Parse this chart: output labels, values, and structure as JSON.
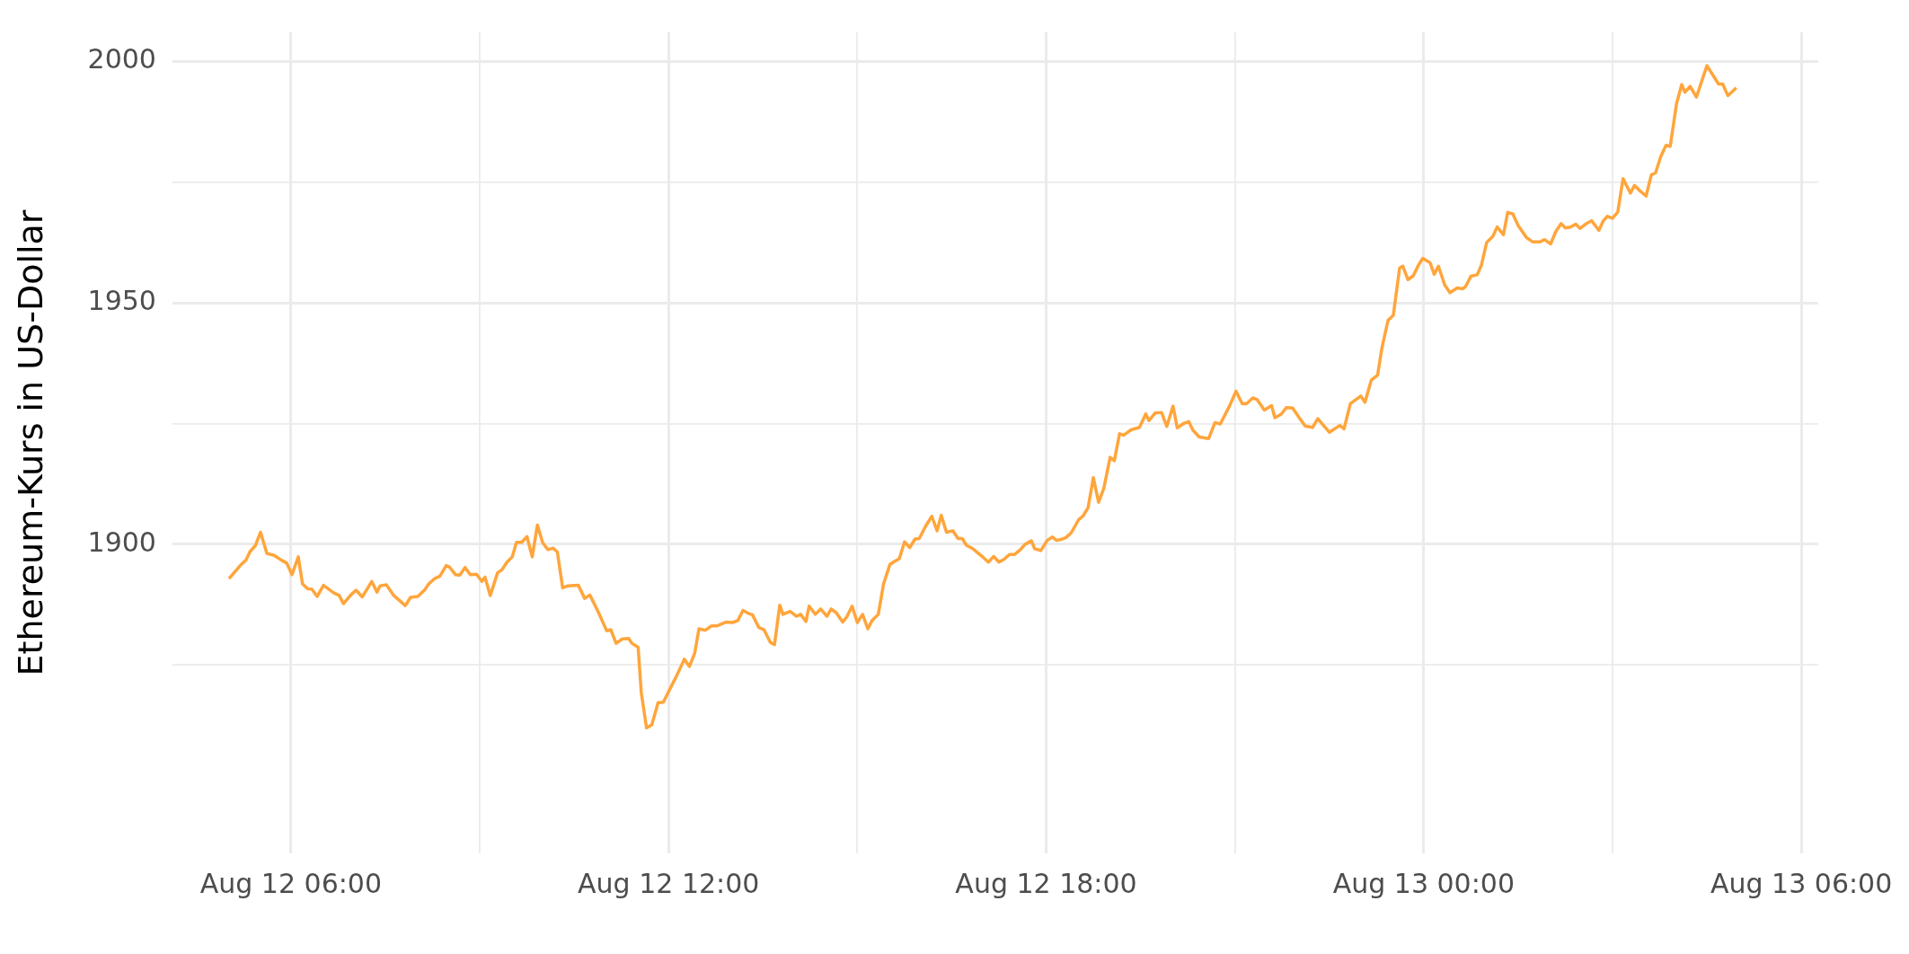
{
  "chart_data": {
    "type": "line",
    "ylabel": "Ethereum-Kurs in US-Dollar",
    "marker": "none",
    "grid": true,
    "xlim": [
      "--08-12T04:07",
      "--08-13T06:16"
    ],
    "ylim": [
      1836,
      2006
    ],
    "xticks": [
      {
        "value": "--08-12T06:00",
        "label": "Aug 12 06:00"
      },
      {
        "value": "--08-12T09:00",
        "label": null
      },
      {
        "value": "--08-12T12:00",
        "label": "Aug 12 12:00"
      },
      {
        "value": "--08-12T15:00",
        "label": null
      },
      {
        "value": "--08-12T18:00",
        "label": "Aug 12 18:00"
      },
      {
        "value": "--08-12T21:00",
        "label": null
      },
      {
        "value": "--08-13T00:00",
        "label": "Aug 13 00:00"
      },
      {
        "value": "--08-13T03:00",
        "label": null
      },
      {
        "value": "--08-13T06:00",
        "label": "Aug 13 06:00"
      }
    ],
    "yticks": [
      {
        "value": 1875,
        "label": null
      },
      1900,
      {
        "value": 1925,
        "label": null
      },
      1950,
      {
        "value": 1975,
        "label": null
      },
      2000
    ],
    "series": [
      {
        "color": "#ffa53b",
        "x": [
          "--08-12T05:01",
          "--08-12T05:05",
          "--08-12T05:12",
          "--08-12T05:17",
          "--08-12T05:21",
          "--08-12T05:26",
          "--08-12T05:31",
          "--08-12T05:37",
          "--08-12T05:44",
          "--08-12T05:51",
          "--08-12T05:56",
          "--08-12T06:01",
          "--08-12T06:07",
          "--08-12T06:11",
          "--08-12T06:16",
          "--08-12T06:20",
          "--08-12T06:25",
          "--08-12T06:31",
          "--08-12T06:41",
          "--08-12T06:46",
          "--08-12T06:50",
          "--08-12T06:57",
          "--08-12T07:02",
          "--08-12T07:08",
          "--08-12T07:17",
          "--08-12T07:22",
          "--08-12T07:25",
          "--08-12T07:31",
          "--08-12T07:38",
          "--08-12T07:49",
          "--08-12T07:54",
          "--08-12T08:01",
          "--08-12T08:08",
          "--08-12T08:11",
          "--08-12T08:17",
          "--08-12T08:22",
          "--08-12T08:28",
          "--08-12T08:31",
          "--08-12T08:37",
          "--08-12T08:41",
          "--08-12T08:46",
          "--08-12T08:51",
          "--08-12T08:57",
          "--08-12T09:02",
          "--08-12T09:05",
          "--08-12T09:10",
          "--08-12T09:17",
          "--08-12T09:21",
          "--08-12T09:26",
          "--08-12T09:31",
          "--08-12T09:35",
          "--08-12T09:40",
          "--08-12T09:45",
          "--08-12T09:50",
          "--08-12T09:55",
          "--08-12T10:00",
          "--08-12T10:05",
          "--08-12T10:10",
          "--08-12T10:14",
          "--08-12T10:19",
          "--08-12T10:24",
          "--08-12T10:34",
          "--08-12T10:40",
          "--08-12T10:45",
          "--08-12T10:53",
          "--08-12T11:01",
          "--08-12T11:05",
          "--08-12T11:10",
          "--08-12T11:16",
          "--08-12T11:22",
          "--08-12T11:25",
          "--08-12T11:31",
          "--08-12T11:34",
          "--08-12T11:39",
          "--08-12T11:44",
          "--08-12T11:50",
          "--08-12T11:55",
          "--08-12T12:01",
          "--08-12T12:08",
          "--08-12T12:15",
          "--08-12T12:20",
          "--08-12T12:25",
          "--08-12T12:29",
          "--08-12T12:35",
          "--08-12T12:41",
          "--08-12T12:46",
          "--08-12T12:55",
          "--08-12T13:01",
          "--08-12T13:06",
          "--08-12T13:11",
          "--08-12T13:16",
          "--08-12T13:20",
          "--08-12T13:26",
          "--08-12T13:31",
          "--08-12T13:37",
          "--08-12T13:41",
          "--08-12T13:46",
          "--08-12T13:49",
          "--08-12T13:56",
          "--08-12T14:02",
          "--08-12T14:06",
          "--08-12T14:11",
          "--08-12T14:14",
          "--08-12T14:20",
          "--08-12T14:25",
          "--08-12T14:31",
          "--08-12T14:35",
          "--08-12T14:40",
          "--08-12T14:46",
          "--08-12T14:50",
          "--08-12T14:55",
          "--08-12T15:00",
          "--08-12T15:05",
          "--08-12T15:10",
          "--08-12T15:14",
          "--08-12T15:20",
          "--08-12T15:25",
          "--08-12T15:31",
          "--08-12T15:35",
          "--08-12T15:40",
          "--08-12T15:45",
          "--08-12T15:50",
          "--08-12T15:55",
          "--08-12T15:59",
          "--08-12T16:05",
          "--08-12T16:11",
          "--08-12T16:16",
          "--08-12T16:20",
          "--08-12T16:25",
          "--08-12T16:31",
          "--08-12T16:36",
          "--08-12T16:40",
          "--08-12T16:44",
          "--08-12T16:50",
          "--08-12T16:55",
          "--08-12T17:00",
          "--08-12T17:05",
          "--08-12T17:10",
          "--08-12T17:15",
          "--08-12T17:20",
          "--08-12T17:25",
          "--08-12T17:30",
          "--08-12T17:35",
          "--08-12T17:40",
          "--08-12T17:46",
          "--08-12T17:49",
          "--08-12T17:55",
          "--08-12T18:01",
          "--08-12T18:06",
          "--08-12T18:10",
          "--08-12T18:14",
          "--08-12T18:19",
          "--08-12T18:24",
          "--08-12T18:31",
          "--08-12T18:35",
          "--08-12T18:40",
          "--08-12T18:45",
          "--08-12T18:50",
          "--08-12T18:55",
          "--08-12T19:01",
          "--08-12T19:05",
          "--08-12T19:10",
          "--08-12T19:14",
          "--08-12T19:21",
          "--08-12T19:29",
          "--08-12T19:35",
          "--08-12T19:38",
          "--08-12T19:44",
          "--08-12T19:50",
          "--08-12T19:55",
          "--08-12T20:01",
          "--08-12T20:05",
          "--08-12T20:11",
          "--08-12T20:16",
          "--08-12T20:20",
          "--08-12T20:26",
          "--08-12T20:35",
          "--08-12T20:41",
          "--08-12T20:46",
          "--08-12T20:55",
          "--08-12T21:01",
          "--08-12T21:07",
          "--08-12T21:11",
          "--08-12T21:17",
          "--08-12T21:21",
          "--08-12T21:28",
          "--08-12T21:35",
          "--08-12T21:38",
          "--08-12T21:44",
          "--08-12T21:49",
          "--08-12T21:55",
          "--08-12T22:01",
          "--08-12T22:07",
          "--08-12T22:14",
          "--08-12T22:19",
          "--08-12T22:30",
          "--08-12T22:40",
          "--08-12T22:44",
          "--08-12T22:50",
          "--08-12T23:00",
          "--08-12T23:04",
          "--08-12T23:10",
          "--08-12T23:16",
          "--08-12T23:20",
          "--08-12T23:26",
          "--08-12T23:31",
          "--08-12T23:37",
          "--08-12T23:40",
          "--08-12T23:45",
          "--08-12T23:50",
          "--08-12T23:55",
          "--08-12T23:59",
          "--08-13T00:06",
          "--08-13T00:10",
          "--08-13T00:14",
          "--08-13T00:20",
          "--08-13T00:25",
          "--08-13T00:32",
          "--08-13T00:37",
          "--08-13T00:40",
          "--08-13T00:45",
          "--08-13T00:51",
          "--08-13T00:55",
          "--08-13T01:00",
          "--08-13T01:06",
          "--08-13T01:10",
          "--08-13T01:16",
          "--08-13T01:20",
          "--08-13T01:25",
          "--08-13T01:30",
          "--08-13T01:38",
          "--08-13T01:44",
          "--08-13T01:51",
          "--08-13T01:55",
          "--08-13T02:01",
          "--08-13T02:06",
          "--08-13T02:11",
          "--08-13T02:15",
          "--08-13T02:20",
          "--08-13T02:25",
          "--08-13T02:29",
          "--08-13T02:35",
          "--08-13T02:40",
          "--08-13T02:47",
          "--08-13T02:51",
          "--08-13T02:55",
          "--08-13T03:00",
          "--08-13T03:05",
          "--08-13T03:10",
          "--08-13T03:17",
          "--08-13T03:21",
          "--08-13T03:26",
          "--08-13T03:32",
          "--08-13T03:37",
          "--08-13T03:41",
          "--08-13T03:46",
          "--08-13T03:51",
          "--08-13T03:55",
          "--08-13T04:01",
          "--08-13T04:06",
          "--08-13T04:09",
          "--08-13T04:14",
          "--08-13T04:20",
          "--08-13T04:30",
          "--08-13T04:37",
          "--08-13T04:41",
          "--08-13T04:45",
          "--08-13T04:50",
          "--08-13T04:58"
        ],
        "values": [
          1892.9,
          1893.9,
          1895.7,
          1896.7,
          1898.5,
          1899.7,
          1902.5,
          1898.1,
          1897.7,
          1896.7,
          1896.1,
          1893.7,
          1897.4,
          1891.8,
          1890.8,
          1890.7,
          1889.2,
          1891.5,
          1889.9,
          1889.4,
          1887.7,
          1889.5,
          1890.5,
          1889.1,
          1892.3,
          1890.1,
          1891.4,
          1891.6,
          1889.4,
          1887.3,
          1889.0,
          1889.2,
          1890.7,
          1891.7,
          1892.9,
          1893.4,
          1895.6,
          1895.3,
          1893.7,
          1893.6,
          1895.2,
          1893.7,
          1893.8,
          1892.3,
          1893.2,
          1889.4,
          1894.1,
          1894.7,
          1896.3,
          1897.4,
          1900.4,
          1900.4,
          1901.6,
          1897.4,
          1904.0,
          1900.3,
          1898.9,
          1899.2,
          1898.4,
          1891.0,
          1891.4,
          1891.5,
          1888.8,
          1889.5,
          1886.0,
          1882.1,
          1882.3,
          1879.5,
          1880.4,
          1880.5,
          1879.5,
          1878.7,
          1869.3,
          1862.0,
          1862.6,
          1867.2,
          1867.3,
          1869.9,
          1872.9,
          1876.2,
          1874.7,
          1877.5,
          1882.5,
          1882.2,
          1883.1,
          1883.1,
          1883.9,
          1883.8,
          1884.2,
          1886.3,
          1885.7,
          1885.4,
          1882.8,
          1882.3,
          1879.7,
          1879.2,
          1887.4,
          1885.5,
          1886.1,
          1885.1,
          1885.5,
          1884.0,
          1887.2,
          1885.5,
          1886.6,
          1885.1,
          1886.6,
          1885.8,
          1883.9,
          1885.0,
          1887.2,
          1883.8,
          1885.5,
          1882.5,
          1884.2,
          1885.5,
          1891.8,
          1895.8,
          1896.4,
          1897.0,
          1900.5,
          1899.3,
          1901.1,
          1901.2,
          1903.7,
          1905.8,
          1902.8,
          1906.0,
          1902.5,
          1902.8,
          1901.2,
          1901.2,
          1899.8,
          1899.1,
          1898.2,
          1897.3,
          1896.3,
          1897.5,
          1896.3,
          1896.9,
          1897.9,
          1897.9,
          1898.8,
          1900.0,
          1900.7,
          1899.1,
          1898.7,
          1900.8,
          1901.5,
          1900.8,
          1901.0,
          1901.4,
          1902.4,
          1905.1,
          1905.8,
          1907.6,
          1913.8,
          1908.7,
          1911.6,
          1918.0,
          1917.3,
          1922.9,
          1922.6,
          1923.7,
          1924.2,
          1927.0,
          1925.6,
          1927.2,
          1927.3,
          1924.4,
          1928.6,
          1924.1,
          1925.0,
          1925.4,
          1923.6,
          1922.2,
          1921.9,
          1925.2,
          1924.9,
          1928.7,
          1931.7,
          1929.1,
          1929.1,
          1930.3,
          1930.0,
          1927.8,
          1928.7,
          1926.2,
          1926.9,
          1928.3,
          1928.2,
          1926.3,
          1924.5,
          1924.2,
          1926.0,
          1923.2,
          1924.6,
          1923.9,
          1929.1,
          1930.7,
          1929.4,
          1934.0,
          1935.0,
          1940.5,
          1946.4,
          1947.4,
          1957.2,
          1957.6,
          1954.8,
          1955.6,
          1957.8,
          1959.2,
          1958.3,
          1955.9,
          1957.6,
          1953.7,
          1952.1,
          1953.1,
          1952.9,
          1953.4,
          1955.5,
          1955.8,
          1957.8,
          1962.5,
          1963.8,
          1965.7,
          1964.1,
          1968.7,
          1968.4,
          1966.0,
          1963.5,
          1962.6,
          1962.6,
          1963.1,
          1962.2,
          1964.8,
          1966.4,
          1965.5,
          1965.7,
          1966.3,
          1965.4,
          1966.4,
          1967.0,
          1965.0,
          1966.9,
          1967.9,
          1967.5,
          1968.8,
          1975.7,
          1972.7,
          1974.3,
          1973.2,
          1972.1,
          1976.5,
          1976.9,
          1980.3,
          1982.6,
          1982.4,
          1991.2,
          1995.2,
          1993.6,
          1994.8,
          1992.6,
          1999.1,
          1996.7,
          1995.3,
          1995.3,
          1992.9,
          1994.5
        ]
      }
    ]
  }
}
